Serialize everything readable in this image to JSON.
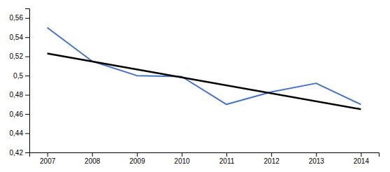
{
  "chart_data": {
    "type": "line",
    "x": [
      2007,
      2008,
      2009,
      2010,
      2011,
      2012,
      2013,
      2014
    ],
    "series": [
      {
        "type": "line",
        "color": "#4472C4",
        "values": [
          0.55,
          0.515,
          0.5,
          0.499,
          0.47,
          0.483,
          0.492,
          0.47
        ]
      },
      {
        "type": "line",
        "color": "#000000",
        "x": [
          2007,
          2014
        ],
        "values": [
          0.523,
          0.465
        ]
      }
    ],
    "xlim": [
      2006.6,
      2014.4
    ],
    "xticks": [
      2007,
      2008,
      2009,
      2010,
      2011,
      2012,
      2013,
      2014
    ],
    "ylim": [
      0.42,
      0.57
    ],
    "yticks": [
      {
        "value": 0.42,
        "label": "0,42"
      },
      {
        "value": 0.44,
        "label": "0,44"
      },
      {
        "value": 0.46,
        "label": "0,46"
      },
      {
        "value": 0.48,
        "label": "0,48"
      },
      {
        "value": 0.5,
        "label": "0,5"
      },
      {
        "value": 0.52,
        "label": "0,52"
      },
      {
        "value": 0.54,
        "label": "0,54"
      },
      {
        "value": 0.56,
        "label": "0,56"
      }
    ],
    "grid": false
  }
}
